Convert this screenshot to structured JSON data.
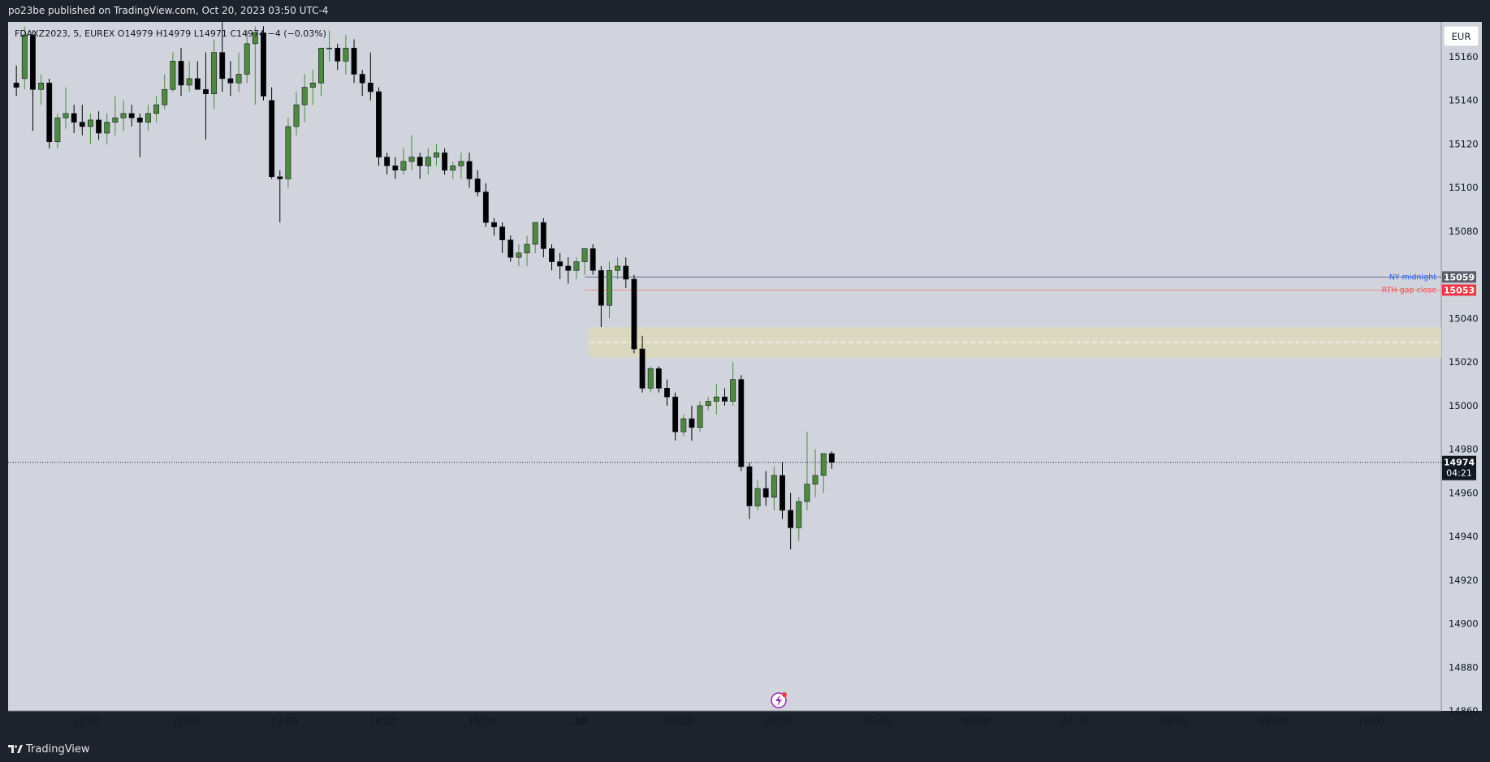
{
  "header": {
    "publish_line": "po23be published on TradingView.com, Oct 20, 2023 03:50 UTC-4"
  },
  "footer": {
    "brand": "TradingView",
    "logo_icon": "tradingview-logo-icon"
  },
  "symbol_info": {
    "line": "FDAXZ2023, 5, EUREX  O14979  H14979  L14971  C14974  −4 (−0.03%)"
  },
  "currency_button": "EUR",
  "colors": {
    "background": "#d1d4dc",
    "bull": "#4c8a3c",
    "bear": "#000000",
    "ny_line": "#5b6d93",
    "rth_line": "#f08c8c",
    "zone": "#dbd8c0",
    "ny_label": "#2962ff",
    "rth_label": "#ef5350"
  },
  "chart_data": {
    "type": "candlestick",
    "title": "FDAXZ2023, 5, EUREX",
    "ylim": [
      14860,
      15176
    ],
    "y_ticks": [
      15160,
      15140,
      15120,
      15100,
      15080,
      15040,
      15020,
      15000,
      14980,
      14960,
      14940,
      14920,
      14900,
      14880,
      14860
    ],
    "x_ticks": [
      {
        "label": "11:00",
        "bar": 9.5
      },
      {
        "label": "12:00",
        "bar": 21.5
      },
      {
        "label": "13:00",
        "bar": 33.5
      },
      {
        "label": "14:00",
        "bar": 45.5
      },
      {
        "label": "15:00",
        "bar": 57.5
      },
      {
        "label": "20",
        "bar": 69.5,
        "bold": true
      },
      {
        "label": "03:00",
        "bar": 81.5
      },
      {
        "label": "04:00",
        "bar": 93.5
      },
      {
        "label": "05:00",
        "bar": 105.5
      },
      {
        "label": "06:00",
        "bar": 117.5
      },
      {
        "label": "07:00",
        "bar": 129.5
      },
      {
        "label": "08:00",
        "bar": 141.5
      },
      {
        "label": "09:00",
        "bar": 153.5
      },
      {
        "label": "10:00",
        "bar": 165.5
      }
    ],
    "bar_count_visible": 174,
    "candles": [
      [
        15148,
        15156,
        15142,
        15146
      ],
      [
        15150,
        15174,
        15145,
        15170
      ],
      [
        15170,
        15172,
        15126,
        15145
      ],
      [
        15145,
        15152,
        15138,
        15148
      ],
      [
        15148,
        15150,
        15118,
        15121
      ],
      [
        15121,
        15134,
        15118,
        15132
      ],
      [
        15132,
        15146,
        15127,
        15134
      ],
      [
        15134,
        15138,
        15125,
        15130
      ],
      [
        15130,
        15138,
        15124,
        15128
      ],
      [
        15128,
        15134,
        15120,
        15131
      ],
      [
        15131,
        15135,
        15122,
        15125
      ],
      [
        15125,
        15134,
        15120,
        15130
      ],
      [
        15130,
        15142,
        15124,
        15132
      ],
      [
        15132,
        15140,
        15126,
        15134
      ],
      [
        15134,
        15138,
        15128,
        15132
      ],
      [
        15132,
        15134,
        15114,
        15130
      ],
      [
        15130,
        15138,
        15126,
        15134
      ],
      [
        15134,
        15142,
        15130,
        15138
      ],
      [
        15138,
        15152,
        15136,
        15145
      ],
      [
        15145,
        15162,
        15144,
        15158
      ],
      [
        15158,
        15164,
        15142,
        15147
      ],
      [
        15147,
        15158,
        15144,
        15150
      ],
      [
        15150,
        15158,
        15145,
        15145
      ],
      [
        15145,
        15162,
        15122,
        15143
      ],
      [
        15143,
        15168,
        15136,
        15162
      ],
      [
        15162,
        15176,
        15144,
        15150
      ],
      [
        15150,
        15158,
        15142,
        15148
      ],
      [
        15148,
        15162,
        15144,
        15152
      ],
      [
        15152,
        15172,
        15148,
        15166
      ],
      [
        15166,
        15174,
        15138,
        15171
      ],
      [
        15171,
        15174,
        15140,
        15142
      ],
      [
        15140,
        15146,
        15104,
        15105
      ],
      [
        15105,
        15108,
        15084,
        15104
      ],
      [
        15104,
        15132,
        15100,
        15128
      ],
      [
        15128,
        15144,
        15124,
        15138
      ],
      [
        15138,
        15152,
        15130,
        15146
      ],
      [
        15146,
        15154,
        15138,
        15148
      ],
      [
        15148,
        15164,
        15142,
        15164
      ],
      [
        15164,
        15172,
        15158,
        15164
      ],
      [
        15164,
        15166,
        15154,
        15158
      ],
      [
        15158,
        15170,
        15152,
        15164
      ],
      [
        15164,
        15168,
        15148,
        15152
      ],
      [
        15152,
        15154,
        15142,
        15148
      ],
      [
        15148,
        15162,
        15140,
        15144
      ],
      [
        15144,
        15146,
        15110,
        15114
      ],
      [
        15114,
        15116,
        15106,
        15110
      ],
      [
        15110,
        15114,
        15104,
        15108
      ],
      [
        15108,
        15118,
        15106,
        15112
      ],
      [
        15112,
        15124,
        15108,
        15114
      ],
      [
        15114,
        15116,
        15104,
        15110
      ],
      [
        15110,
        15118,
        15106,
        15114
      ],
      [
        15114,
        15120,
        15110,
        15116
      ],
      [
        15116,
        15118,
        15106,
        15108
      ],
      [
        15108,
        15112,
        15104,
        15110
      ],
      [
        15110,
        15116,
        15104,
        15112
      ],
      [
        15112,
        15116,
        15100,
        15104
      ],
      [
        15104,
        15108,
        15096,
        15098
      ],
      [
        15098,
        15102,
        15082,
        15084
      ],
      [
        15084,
        15086,
        15078,
        15082
      ],
      [
        15082,
        15084,
        15070,
        15076
      ],
      [
        15076,
        15078,
        15066,
        15068
      ],
      [
        15068,
        15074,
        15064,
        15070
      ],
      [
        15070,
        15078,
        15064,
        15074
      ],
      [
        15074,
        15084,
        15070,
        15084
      ],
      [
        15084,
        15086,
        15068,
        15072
      ],
      [
        15072,
        15074,
        15062,
        15066
      ],
      [
        15066,
        15070,
        15058,
        15064
      ],
      [
        15064,
        15068,
        15056,
        15062
      ],
      [
        15062,
        15068,
        15058,
        15066
      ],
      [
        15066,
        15072,
        15060,
        15072
      ],
      [
        15072,
        15074,
        15060,
        15062
      ],
      [
        15062,
        15064,
        15036,
        15046
      ],
      [
        15046,
        15066,
        15040,
        15062
      ],
      [
        15062,
        15068,
        15058,
        15064
      ],
      [
        15064,
        15068,
        15054,
        15058
      ],
      [
        15058,
        15060,
        15024,
        15026
      ],
      [
        15026,
        15032,
        15006,
        15008
      ],
      [
        15008,
        15018,
        15006,
        15017
      ],
      [
        15017,
        15018,
        15006,
        15008
      ],
      [
        15008,
        15012,
        15000,
        15004
      ],
      [
        15004,
        15006,
        14984,
        14988
      ],
      [
        14988,
        14996,
        14986,
        14994
      ],
      [
        14994,
        15000,
        14984,
        14990
      ],
      [
        14990,
        15002,
        14988,
        15000
      ],
      [
        15000,
        15004,
        14998,
        15002
      ],
      [
        15002,
        15010,
        14996,
        15004
      ],
      [
        15004,
        15008,
        15000,
        15002
      ],
      [
        15002,
        15020,
        15000,
        15012
      ],
      [
        15012,
        15014,
        14970,
        14972
      ],
      [
        14972,
        14974,
        14948,
        14954
      ],
      [
        14954,
        14966,
        14952,
        14962
      ],
      [
        14962,
        14970,
        14954,
        14958
      ],
      [
        14958,
        14972,
        14952,
        14968
      ],
      [
        14968,
        14974,
        14948,
        14952
      ],
      [
        14952,
        14960,
        14934,
        14944
      ],
      [
        14944,
        14958,
        14938,
        14956
      ],
      [
        14956,
        14988,
        14952,
        14964
      ],
      [
        14964,
        14980,
        14958,
        14968
      ],
      [
        14968,
        14978,
        14960,
        14978
      ],
      [
        14978,
        14979,
        14971,
        14974
      ]
    ],
    "gap_bar_index": 70,
    "first_candle_bar": 1,
    "after_gap_start_bar": 71,
    "levels": [
      {
        "name": "NY midnight",
        "price": 15059,
        "label": "15059"
      },
      {
        "name": "RTH gap close",
        "price": 15053,
        "label": "15053"
      }
    ],
    "zone": {
      "top": 15036,
      "bottom": 15022,
      "mid": 15029
    },
    "current_price": {
      "price": 14974,
      "label": "14974",
      "countdown": "04:21"
    }
  }
}
